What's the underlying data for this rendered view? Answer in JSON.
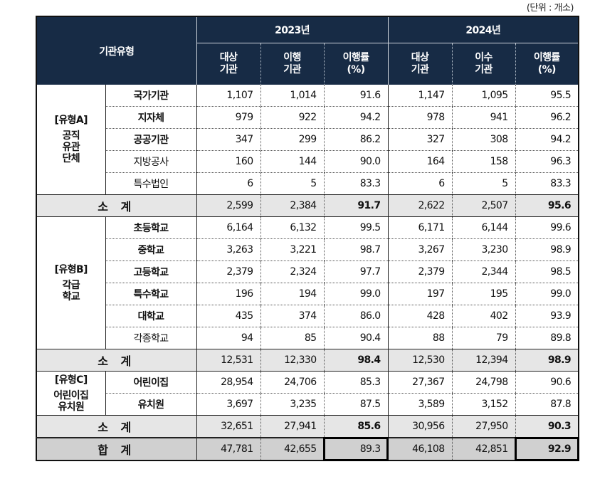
{
  "unit_label": "(단위 : 개소)",
  "header": {
    "type_label": "기관유형",
    "years": [
      {
        "label": "2023년",
        "cols": [
          {
            "l1": "대상",
            "l2": "기관"
          },
          {
            "l1": "이행",
            "l2": "기관"
          },
          {
            "l1": "이행률",
            "l2": "(%)"
          }
        ]
      },
      {
        "label": "2024년",
        "cols": [
          {
            "l1": "대상",
            "l2": "기관"
          },
          {
            "l1": "이수",
            "l2": "기관"
          },
          {
            "l1": "이행률",
            "l2": "(%)"
          }
        ]
      }
    ]
  },
  "groups": [
    {
      "l1": "[유형A]",
      "l2": "공직",
      "l3": "유관",
      "l4": "단체",
      "rows": [
        {
          "name": "국가기관",
          "bold": true,
          "v": [
            "1,107",
            "1,014",
            "91.6",
            "1,147",
            "1,095",
            "95.5"
          ]
        },
        {
          "name": "지자체",
          "bold": true,
          "v": [
            "979",
            "922",
            "94.2",
            "978",
            "941",
            "96.2"
          ]
        },
        {
          "name": "공공기관",
          "bold": true,
          "v": [
            "347",
            "299",
            "86.2",
            "327",
            "308",
            "94.2"
          ]
        },
        {
          "name": "지방공사",
          "bold": false,
          "v": [
            "160",
            "144",
            "90.0",
            "164",
            "158",
            "96.3"
          ]
        },
        {
          "name": "특수법인",
          "bold": false,
          "v": [
            "6",
            "5",
            "83.3",
            "6",
            "5",
            "83.3"
          ]
        }
      ],
      "subtotal": {
        "label": "소 계",
        "v": [
          "2,599",
          "2,384",
          "91.7",
          "2,622",
          "2,507",
          "95.6"
        ]
      }
    },
    {
      "l1": "[유형B]",
      "l2": "각급",
      "l3": "학교",
      "l4": "",
      "rows": [
        {
          "name": "초등학교",
          "bold": true,
          "v": [
            "6,164",
            "6,132",
            "99.5",
            "6,171",
            "6,144",
            "99.6"
          ]
        },
        {
          "name": "중학교",
          "bold": true,
          "v": [
            "3,263",
            "3,221",
            "98.7",
            "3,267",
            "3,230",
            "98.9"
          ]
        },
        {
          "name": "고등학교",
          "bold": true,
          "v": [
            "2,379",
            "2,324",
            "97.7",
            "2,379",
            "2,344",
            "98.5"
          ]
        },
        {
          "name": "특수학교",
          "bold": true,
          "v": [
            "196",
            "194",
            "99.0",
            "197",
            "195",
            "99.0"
          ]
        },
        {
          "name": "대학교",
          "bold": true,
          "v": [
            "435",
            "374",
            "86.0",
            "428",
            "402",
            "93.9"
          ]
        },
        {
          "name": "각종학교",
          "bold": false,
          "v": [
            "94",
            "85",
            "90.4",
            "88",
            "79",
            "89.8"
          ]
        }
      ],
      "subtotal": {
        "label": "소 계",
        "v": [
          "12,531",
          "12,330",
          "98.4",
          "12,530",
          "12,394",
          "98.9"
        ]
      }
    },
    {
      "l1": "[유형C]",
      "l2": "어린이집",
      "l3": "유치원",
      "l4": "",
      "rows": [
        {
          "name": "어린이집",
          "bold": true,
          "v": [
            "28,954",
            "24,706",
            "85.3",
            "27,367",
            "24,798",
            "90.6"
          ]
        },
        {
          "name": "유치원",
          "bold": true,
          "v": [
            "3,697",
            "3,235",
            "87.5",
            "3,589",
            "3,152",
            "87.8"
          ]
        }
      ],
      "subtotal": {
        "label": "소 계",
        "v": [
          "32,651",
          "27,941",
          "85.6",
          "30,956",
          "27,950",
          "90.3"
        ]
      }
    }
  ],
  "total": {
    "label": "합 계",
    "v": [
      "47,781",
      "42,655",
      "89.3",
      "46,108",
      "42,851",
      "92.9"
    ]
  },
  "colors": {
    "header_bg": "#172b45",
    "subtotal_bg": "#e6e6e6",
    "total_bg": "#d0d0d0"
  }
}
